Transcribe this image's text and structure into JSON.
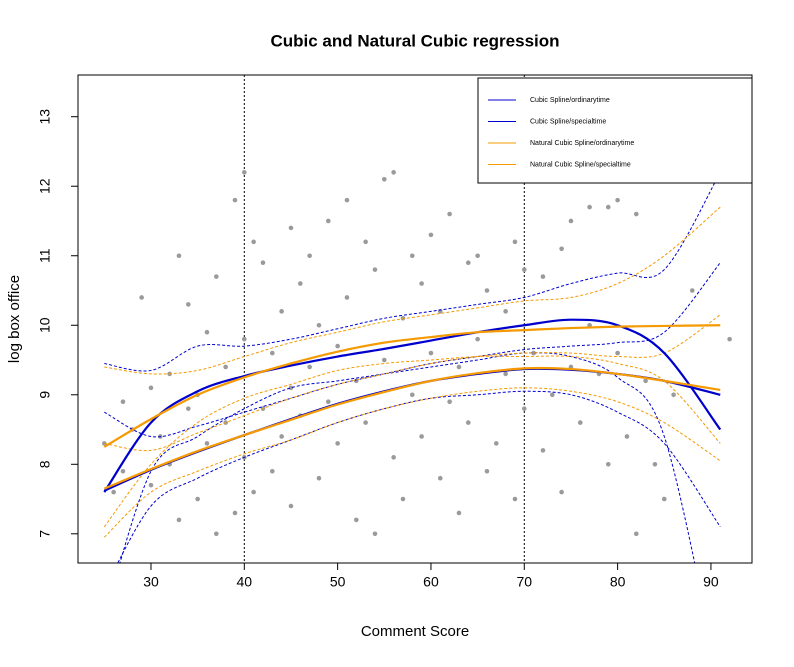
{
  "chart_data": {
    "type": "line",
    "title": "Cubic and Natural Cubic regression",
    "xlabel": "Comment Score",
    "ylabel": "log box office",
    "xlim": [
      22.18,
      94.4
    ],
    "ylim": [
      6.58,
      13.6
    ],
    "xticks": [
      30,
      40,
      50,
      60,
      70,
      80,
      90
    ],
    "yticks": [
      7,
      8,
      9,
      10,
      11,
      12,
      13
    ],
    "vlines": [
      40,
      70
    ],
    "legend": "top-right",
    "x": [
      25,
      30,
      35,
      40,
      45,
      50,
      55,
      60,
      65,
      70,
      75,
      80,
      85,
      91
    ],
    "series": [
      {
        "name": "Cubic Spline/ordinarytime",
        "color": "#0000cd",
        "values": [
          7.62,
          7.92,
          8.18,
          8.42,
          8.65,
          8.87,
          9.05,
          9.2,
          9.3,
          9.37,
          9.36,
          9.3,
          9.2,
          9.0
        ],
        "upper": [
          8.75,
          8.4,
          8.55,
          8.75,
          8.95,
          9.15,
          9.3,
          9.45,
          9.55,
          9.65,
          9.7,
          9.75,
          9.9,
          10.9
        ],
        "lower": [
          6.2,
          7.4,
          7.8,
          8.1,
          8.35,
          8.6,
          8.8,
          8.95,
          9.0,
          9.05,
          9.0,
          8.75,
          8.3,
          7.1
        ]
      },
      {
        "name": "Cubic Spline/specialtime",
        "color": "#0000cd",
        "values": [
          7.6,
          8.6,
          9.05,
          9.27,
          9.42,
          9.55,
          9.66,
          9.78,
          9.9,
          10.0,
          10.08,
          10.0,
          9.6,
          8.5
        ],
        "upper": [
          9.45,
          9.35,
          9.7,
          9.7,
          9.8,
          9.95,
          10.1,
          10.2,
          10.3,
          10.4,
          10.6,
          10.75,
          10.8,
          12.2
        ],
        "lower": [
          5.8,
          7.9,
          8.4,
          8.8,
          9.1,
          9.2,
          9.3,
          9.4,
          9.5,
          9.6,
          9.55,
          9.25,
          8.4,
          4.8
        ]
      },
      {
        "name": "Natural Cubic Spline/ordinarytime",
        "color": "#f59a00",
        "values": [
          7.65,
          7.93,
          8.19,
          8.42,
          8.64,
          8.86,
          9.04,
          9.2,
          9.31,
          9.38,
          9.37,
          9.3,
          9.2,
          9.07
        ],
        "upper": [
          8.3,
          8.2,
          8.45,
          8.7,
          8.95,
          9.15,
          9.3,
          9.45,
          9.55,
          9.6,
          9.6,
          9.55,
          9.6,
          10.15
        ],
        "lower": [
          6.95,
          7.6,
          7.9,
          8.15,
          8.35,
          8.6,
          8.8,
          8.95,
          9.05,
          9.1,
          9.05,
          8.9,
          8.6,
          8.05
        ]
      },
      {
        "name": "Natural Cubic Spline/specialtime",
        "color": "#f59a00",
        "values": [
          8.25,
          8.65,
          9.0,
          9.25,
          9.45,
          9.62,
          9.75,
          9.83,
          9.9,
          9.93,
          9.96,
          9.98,
          9.99,
          10.0
        ],
        "upper": [
          9.4,
          9.3,
          9.35,
          9.55,
          9.75,
          9.9,
          10.05,
          10.15,
          10.25,
          10.35,
          10.4,
          10.6,
          11.0,
          11.7
        ],
        "lower": [
          7.1,
          8.0,
          8.6,
          8.95,
          9.15,
          9.35,
          9.45,
          9.5,
          9.55,
          9.55,
          9.55,
          9.45,
          9.2,
          8.3
        ]
      }
    ],
    "points": {
      "color": "#9a9a9a",
      "x": [
        25,
        26,
        27,
        27,
        28,
        29,
        30,
        30,
        31,
        32,
        32,
        33,
        33,
        34,
        34,
        35,
        35,
        36,
        36,
        37,
        37,
        38,
        38,
        39,
        39,
        40,
        40,
        40,
        41,
        41,
        42,
        42,
        43,
        43,
        44,
        44,
        45,
        45,
        45,
        46,
        46,
        47,
        47,
        48,
        48,
        49,
        49,
        50,
        50,
        51,
        51,
        52,
        52,
        53,
        53,
        54,
        54,
        55,
        55,
        56,
        56,
        57,
        57,
        58,
        58,
        59,
        59,
        60,
        60,
        61,
        61,
        62,
        62,
        63,
        63,
        64,
        64,
        65,
        65,
        66,
        66,
        67,
        68,
        68,
        69,
        69,
        70,
        70,
        71,
        72,
        72,
        73,
        74,
        74,
        75,
        75,
        76,
        77,
        77,
        78,
        79,
        79,
        80,
        80,
        81,
        82,
        82,
        83,
        84,
        85,
        86,
        88,
        92
      ],
      "y": [
        8.3,
        7.6,
        8.9,
        7.9,
        8.5,
        10.4,
        9.1,
        7.7,
        8.4,
        9.3,
        8.0,
        11.0,
        7.2,
        10.3,
        8.8,
        9.0,
        7.5,
        9.9,
        8.3,
        7.0,
        10.7,
        8.6,
        9.4,
        11.8,
        7.3,
        12.2,
        9.8,
        8.1,
        11.2,
        7.6,
        10.9,
        8.8,
        9.6,
        7.9,
        10.2,
        8.4,
        11.4,
        9.1,
        7.4,
        10.6,
        8.7,
        11.0,
        9.4,
        7.8,
        10.0,
        11.5,
        8.9,
        9.7,
        8.3,
        11.8,
        10.4,
        7.2,
        9.2,
        11.2,
        8.6,
        10.8,
        7.0,
        12.1,
        9.5,
        12.2,
        8.1,
        10.1,
        7.5,
        11.0,
        9.0,
        10.6,
        8.4,
        11.3,
        9.6,
        7.8,
        10.2,
        11.6,
        8.9,
        9.4,
        7.3,
        10.9,
        8.6,
        11.0,
        9.8,
        7.9,
        10.5,
        8.3,
        10.2,
        9.3,
        11.2,
        7.5,
        10.8,
        8.8,
        9.6,
        10.7,
        8.2,
        9.0,
        11.1,
        7.6,
        11.5,
        9.4,
        8.6,
        11.7,
        10.0,
        9.3,
        11.7,
        8.0,
        11.8,
        9.6,
        8.4,
        7.0,
        11.6,
        9.2,
        8.0,
        7.5,
        9.0,
        10.5,
        9.8
      ]
    }
  }
}
